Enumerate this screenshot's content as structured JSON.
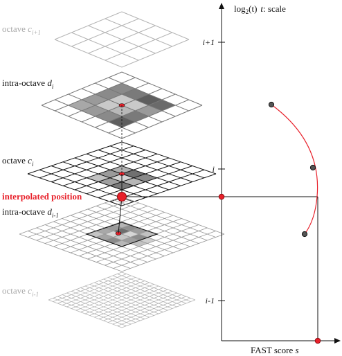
{
  "layers": [
    {
      "id": "oct-ip1",
      "label_main": "octave ",
      "label_var": "c",
      "label_sub": "i+1",
      "style": "faded"
    },
    {
      "id": "intra-i",
      "label_main": "intra-octave ",
      "label_var": "d",
      "label_sub": "i",
      "style": "normal"
    },
    {
      "id": "oct-i",
      "label_main": "octave ",
      "label_var": "c",
      "label_sub": "i",
      "style": "normal"
    },
    {
      "id": "intra-im1",
      "label_main": "intra-octave ",
      "label_var": "d",
      "label_sub": "i-1",
      "style": "normal"
    },
    {
      "id": "oct-im1",
      "label_main": "octave ",
      "label_var": "c",
      "label_sub": "i-1",
      "style": "faded"
    }
  ],
  "interpolated_label": "interpolated position",
  "axis": {
    "y_label_prefix": "log",
    "y_label_sub": "2",
    "y_label_arg": "(t)",
    "y_label_var": "t",
    "y_label_suffix": ": scale",
    "x_label": "FAST score ",
    "x_label_var": "s",
    "ticks": [
      "i+1",
      "i",
      "i-1"
    ]
  },
  "colors": {
    "accent": "#e8202a",
    "grid_dark": "#111111",
    "grid_mid": "#777777",
    "grid_faint": "#b4b4b4"
  }
}
